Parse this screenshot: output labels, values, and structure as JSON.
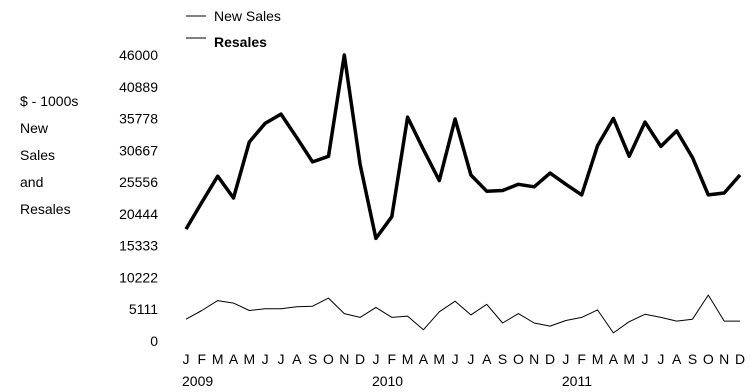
{
  "chart_data": {
    "type": "line",
    "title": "",
    "ylabel_lines": [
      "$ - 1000s",
      "New",
      "Sales",
      "and",
      "Resales"
    ],
    "xlabel": "",
    "ylim": [
      0,
      46000
    ],
    "yticks": [
      "0",
      "5111",
      "10222",
      "15333",
      "20444",
      "25556",
      "30667",
      "35778",
      "40889",
      "46000"
    ],
    "month_labels": [
      "J",
      "F",
      "M",
      "A",
      "M",
      "J",
      "J",
      "A",
      "S",
      "O",
      "N",
      "D",
      "J",
      "F",
      "M",
      "A",
      "M",
      "J",
      "J",
      "A",
      "S",
      "O",
      "N",
      "D",
      "J",
      "F",
      "M",
      "A",
      "M",
      "J",
      "J",
      "A",
      "S",
      "O",
      "N",
      "D"
    ],
    "year_labels": [
      {
        "label": "2009",
        "month_index": 0
      },
      {
        "label": "2010",
        "month_index": 12
      },
      {
        "label": "2011",
        "month_index": 24
      }
    ],
    "legend_position": "top-left",
    "series": [
      {
        "name": "New Sales",
        "style": "thin",
        "values": [
          3500,
          4900,
          6500,
          6100,
          4900,
          5200,
          5200,
          5500,
          5600,
          6900,
          4400,
          3800,
          5400,
          3800,
          4000,
          1800,
          4700,
          6400,
          4200,
          5900,
          2900,
          4400,
          2900,
          2400,
          3300,
          3800,
          5000,
          1300,
          3100,
          4300,
          3800,
          3200,
          3500,
          7400,
          3200,
          3200
        ]
      },
      {
        "name": "Resales",
        "style": "bold",
        "values": [
          18000,
          22300,
          26500,
          23000,
          32000,
          35000,
          36500,
          32700,
          28800,
          29700,
          46000,
          28400,
          16500,
          20000,
          36000,
          30800,
          25800,
          35700,
          26700,
          24100,
          24200,
          25200,
          24800,
          27000,
          25200,
          23500,
          31400,
          35800,
          29700,
          35200,
          31300,
          33800,
          29500,
          23500,
          23800,
          26700
        ]
      }
    ]
  }
}
